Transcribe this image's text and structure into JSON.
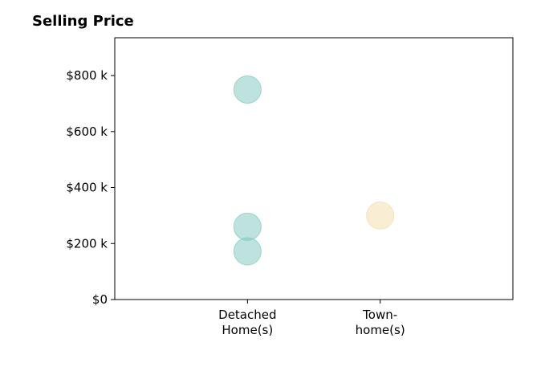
{
  "chart_data": {
    "type": "scatter",
    "title": "Selling Price",
    "xlabel": "",
    "ylabel": "",
    "categories": [
      "Detached\nHome(s)",
      "Town-\nhome(s)"
    ],
    "y_ticks": [
      0,
      200000,
      400000,
      600000,
      800000
    ],
    "y_tick_labels": [
      "$0",
      "$200 k",
      "$400 k",
      "$600 k",
      "$800 k"
    ],
    "ylim": [
      0,
      935000
    ],
    "xlim": [
      -1,
      2
    ],
    "grid": false,
    "points": [
      {
        "category": "Detached\nHome(s)",
        "value": 750000,
        "color": "#7ec8bf"
      },
      {
        "category": "Detached\nHome(s)",
        "value": 260000,
        "color": "#7ec8bf"
      },
      {
        "category": "Detached\nHome(s)",
        "value": 172000,
        "color": "#7ec8bf"
      },
      {
        "category": "Town-\nhome(s)",
        "value": 300000,
        "color": "#f4dba8"
      }
    ]
  }
}
